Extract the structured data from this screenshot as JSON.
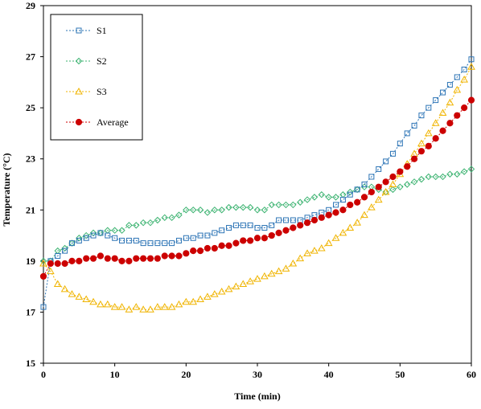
{
  "chart_data": {
    "type": "line",
    "title": "",
    "xlabel": "Time (min)",
    "ylabel": "Temperature  (°C)",
    "xlim": [
      0,
      60
    ],
    "ylim": [
      15,
      29
    ],
    "xticks": [
      0,
      10,
      20,
      30,
      40,
      50,
      60
    ],
    "yticks": [
      15,
      17,
      19,
      21,
      23,
      25,
      27,
      29
    ],
    "grid": false,
    "legend_position": "top-left",
    "x": [
      0,
      1,
      2,
      3,
      4,
      5,
      6,
      7,
      8,
      9,
      10,
      11,
      12,
      13,
      14,
      15,
      16,
      17,
      18,
      19,
      20,
      21,
      22,
      23,
      24,
      25,
      26,
      27,
      28,
      29,
      30,
      31,
      32,
      33,
      34,
      35,
      36,
      37,
      38,
      39,
      40,
      41,
      42,
      43,
      44,
      45,
      46,
      47,
      48,
      49,
      50,
      51,
      52,
      53,
      54,
      55,
      56,
      57,
      58,
      59,
      60
    ],
    "series": [
      {
        "name": "S1",
        "color": "#2e75b6",
        "marker": "square",
        "values": [
          17.2,
          19.0,
          19.2,
          19.4,
          19.7,
          19.8,
          19.9,
          20.0,
          20.1,
          20.0,
          19.9,
          19.8,
          19.8,
          19.8,
          19.7,
          19.7,
          19.7,
          19.7,
          19.7,
          19.8,
          19.9,
          19.9,
          20.0,
          20.0,
          20.1,
          20.2,
          20.3,
          20.4,
          20.4,
          20.4,
          20.3,
          20.3,
          20.4,
          20.6,
          20.6,
          20.6,
          20.6,
          20.7,
          20.8,
          20.9,
          21.0,
          21.2,
          21.4,
          21.6,
          21.8,
          22.0,
          22.3,
          22.6,
          22.9,
          23.2,
          23.6,
          24.0,
          24.3,
          24.7,
          25.0,
          25.3,
          25.6,
          25.9,
          26.2,
          26.5,
          26.9
        ]
      },
      {
        "name": "S2",
        "color": "#3cb371",
        "marker": "diamond",
        "values": [
          19.0,
          19.0,
          19.4,
          19.5,
          19.7,
          19.9,
          20.0,
          20.1,
          20.1,
          20.2,
          20.2,
          20.2,
          20.4,
          20.4,
          20.5,
          20.5,
          20.6,
          20.7,
          20.7,
          20.8,
          21.0,
          21.0,
          21.0,
          20.9,
          21.0,
          21.0,
          21.1,
          21.1,
          21.1,
          21.1,
          21.0,
          21.0,
          21.2,
          21.2,
          21.2,
          21.2,
          21.3,
          21.4,
          21.5,
          21.6,
          21.5,
          21.5,
          21.6,
          21.7,
          21.8,
          21.9,
          21.9,
          21.8,
          21.7,
          21.8,
          21.9,
          22.0,
          22.1,
          22.2,
          22.3,
          22.3,
          22.3,
          22.4,
          22.4,
          22.5,
          22.6
        ]
      },
      {
        "name": "S3",
        "color": "#f0b400",
        "marker": "triangle",
        "values": [
          18.9,
          18.6,
          18.1,
          17.9,
          17.7,
          17.6,
          17.5,
          17.4,
          17.3,
          17.3,
          17.2,
          17.2,
          17.1,
          17.2,
          17.1,
          17.1,
          17.2,
          17.2,
          17.2,
          17.3,
          17.4,
          17.4,
          17.5,
          17.6,
          17.7,
          17.8,
          17.9,
          18.0,
          18.1,
          18.2,
          18.3,
          18.4,
          18.5,
          18.6,
          18.7,
          18.9,
          19.1,
          19.3,
          19.4,
          19.5,
          19.7,
          19.9,
          20.1,
          20.3,
          20.5,
          20.8,
          21.1,
          21.4,
          21.7,
          22.0,
          22.4,
          22.8,
          23.2,
          23.6,
          24.0,
          24.4,
          24.8,
          25.2,
          25.7,
          26.1,
          26.6
        ]
      },
      {
        "name": "Average",
        "color": "#cc0000",
        "marker": "circle",
        "values": [
          18.4,
          18.9,
          18.9,
          18.9,
          19.0,
          19.0,
          19.1,
          19.1,
          19.2,
          19.1,
          19.1,
          19.0,
          19.0,
          19.1,
          19.1,
          19.1,
          19.1,
          19.2,
          19.2,
          19.2,
          19.3,
          19.4,
          19.4,
          19.5,
          19.5,
          19.6,
          19.6,
          19.7,
          19.8,
          19.8,
          19.9,
          19.9,
          20.0,
          20.1,
          20.2,
          20.3,
          20.4,
          20.5,
          20.6,
          20.7,
          20.8,
          20.9,
          21.0,
          21.2,
          21.3,
          21.5,
          21.7,
          21.9,
          22.1,
          22.3,
          22.5,
          22.7,
          23.0,
          23.3,
          23.5,
          23.8,
          24.1,
          24.4,
          24.7,
          25.0,
          25.3
        ]
      }
    ]
  }
}
